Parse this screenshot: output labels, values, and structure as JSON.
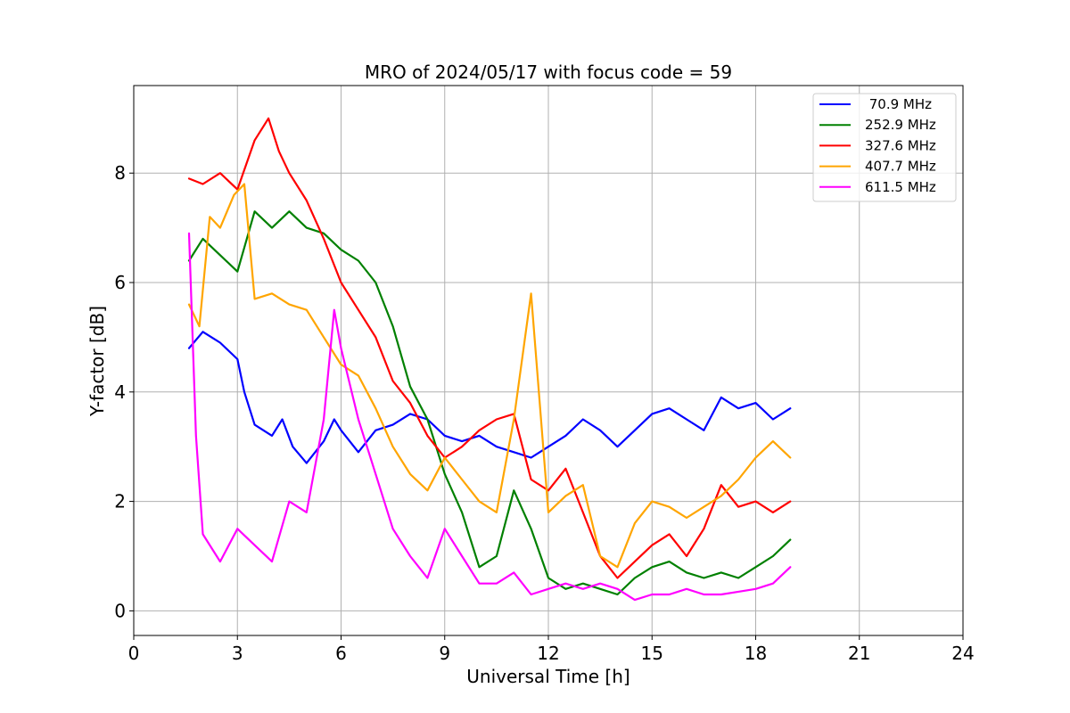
{
  "chart_data": {
    "type": "line",
    "title": "MRO of 2024/05/17 with focus code = 59",
    "xlabel": "Universal Time [h]",
    "ylabel": "Y-factor [dB]",
    "xlim": [
      0,
      24
    ],
    "ylim": [
      -0.45,
      9.6
    ],
    "xticks": [
      0,
      3,
      6,
      9,
      12,
      15,
      18,
      21,
      24
    ],
    "yticks": [
      0,
      2,
      4,
      6,
      8
    ],
    "grid": true,
    "legend_position": "top-right",
    "series": [
      {
        "name": " 70.9 MHz",
        "color": "#0000ff",
        "x": [
          1.6,
          2.0,
          2.5,
          3.0,
          3.2,
          3.5,
          4.0,
          4.3,
          4.6,
          5.0,
          5.5,
          5.8,
          6.0,
          6.5,
          7.0,
          7.5,
          8.0,
          8.5,
          9.0,
          9.5,
          10.0,
          10.5,
          11.0,
          11.5,
          12.0,
          12.5,
          13.0,
          13.5,
          14.0,
          14.5,
          15.0,
          15.5,
          16.0,
          16.5,
          17.0,
          17.5,
          18.0,
          18.5,
          19.0
        ],
        "y": [
          4.8,
          5.1,
          4.9,
          4.6,
          4.0,
          3.4,
          3.2,
          3.5,
          3.0,
          2.7,
          3.1,
          3.5,
          3.3,
          2.9,
          3.3,
          3.4,
          3.6,
          3.5,
          3.2,
          3.1,
          3.2,
          3.0,
          2.9,
          2.8,
          3.0,
          3.2,
          3.5,
          3.3,
          3.0,
          3.3,
          3.6,
          3.7,
          3.5,
          3.3,
          3.9,
          3.7,
          3.8,
          3.5,
          3.7
        ]
      },
      {
        "name": "252.9 MHz",
        "color": "#008000",
        "x": [
          1.6,
          2.0,
          2.5,
          3.0,
          3.5,
          4.0,
          4.5,
          5.0,
          5.5,
          6.0,
          6.5,
          7.0,
          7.5,
          8.0,
          8.5,
          9.0,
          9.5,
          10.0,
          10.5,
          11.0,
          11.5,
          12.0,
          12.5,
          13.0,
          13.5,
          14.0,
          14.5,
          15.0,
          15.5,
          16.0,
          16.5,
          17.0,
          17.5,
          18.0,
          18.5,
          19.0
        ],
        "y": [
          6.4,
          6.8,
          6.5,
          6.2,
          7.3,
          7.0,
          7.3,
          7.0,
          6.9,
          6.6,
          6.4,
          6.0,
          5.2,
          4.1,
          3.5,
          2.5,
          1.8,
          0.8,
          1.0,
          2.2,
          1.5,
          0.6,
          0.4,
          0.5,
          0.4,
          0.3,
          0.6,
          0.8,
          0.9,
          0.7,
          0.6,
          0.7,
          0.6,
          0.8,
          1.0,
          1.3
        ]
      },
      {
        "name": "327.6 MHz",
        "color": "#ff0000",
        "x": [
          1.6,
          2.0,
          2.5,
          3.0,
          3.5,
          3.9,
          4.2,
          4.5,
          5.0,
          5.5,
          6.0,
          6.5,
          7.0,
          7.5,
          8.0,
          8.5,
          9.0,
          9.5,
          10.0,
          10.5,
          11.0,
          11.5,
          12.0,
          12.5,
          13.0,
          13.5,
          14.0,
          14.5,
          15.0,
          15.5,
          16.0,
          16.5,
          17.0,
          17.5,
          18.0,
          18.5,
          19.0
        ],
        "y": [
          7.9,
          7.8,
          8.0,
          7.7,
          8.6,
          9.0,
          8.4,
          8.0,
          7.5,
          6.8,
          6.0,
          5.5,
          5.0,
          4.2,
          3.8,
          3.2,
          2.8,
          3.0,
          3.3,
          3.5,
          3.6,
          2.4,
          2.2,
          2.6,
          1.8,
          1.0,
          0.6,
          0.9,
          1.2,
          1.4,
          1.0,
          1.5,
          2.3,
          1.9,
          2.0,
          1.8,
          2.0
        ]
      },
      {
        "name": "407.7 MHz",
        "color": "#ffa500",
        "x": [
          1.6,
          1.9,
          2.2,
          2.5,
          2.9,
          3.2,
          3.5,
          4.0,
          4.5,
          5.0,
          5.5,
          6.0,
          6.5,
          7.0,
          7.5,
          8.0,
          8.5,
          9.0,
          9.5,
          10.0,
          10.5,
          11.0,
          11.5,
          12.0,
          12.5,
          13.0,
          13.5,
          14.0,
          14.5,
          15.0,
          15.5,
          16.0,
          16.5,
          17.0,
          17.5,
          18.0,
          18.5,
          19.0
        ],
        "y": [
          5.6,
          5.2,
          7.2,
          7.0,
          7.6,
          7.8,
          5.7,
          5.8,
          5.6,
          5.5,
          5.0,
          4.5,
          4.3,
          3.7,
          3.0,
          2.5,
          2.2,
          2.8,
          2.4,
          2.0,
          1.8,
          3.5,
          5.8,
          1.8,
          2.1,
          2.3,
          1.0,
          0.8,
          1.6,
          2.0,
          1.9,
          1.7,
          1.9,
          2.1,
          2.4,
          2.8,
          3.1,
          2.8
        ]
      },
      {
        "name": "611.5 MHz",
        "color": "#ff00ff",
        "x": [
          1.6,
          1.8,
          2.0,
          2.5,
          3.0,
          3.5,
          4.0,
          4.5,
          5.0,
          5.5,
          5.8,
          6.0,
          6.5,
          7.0,
          7.5,
          8.0,
          8.5,
          9.0,
          9.5,
          10.0,
          10.5,
          11.0,
          11.5,
          12.0,
          12.5,
          13.0,
          13.5,
          14.0,
          14.5,
          15.0,
          15.5,
          16.0,
          16.5,
          17.0,
          17.5,
          18.0,
          18.5,
          19.0
        ],
        "y": [
          6.9,
          3.2,
          1.4,
          0.9,
          1.5,
          1.2,
          0.9,
          2.0,
          1.8,
          3.5,
          5.5,
          4.8,
          3.5,
          2.5,
          1.5,
          1.0,
          0.6,
          1.5,
          1.0,
          0.5,
          0.5,
          0.7,
          0.3,
          0.4,
          0.5,
          0.4,
          0.5,
          0.4,
          0.2,
          0.3,
          0.3,
          0.4,
          0.3,
          0.3,
          0.35,
          0.4,
          0.5,
          0.8
        ]
      }
    ]
  }
}
